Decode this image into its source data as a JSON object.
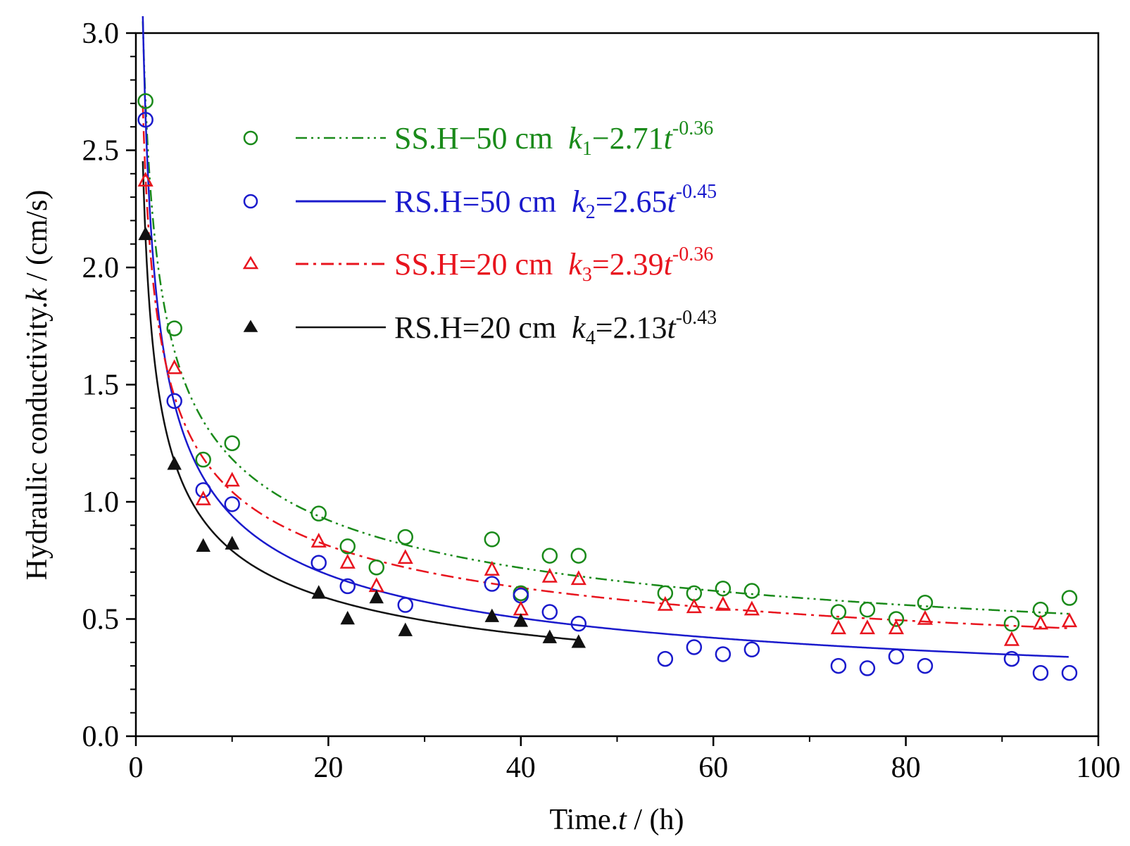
{
  "chart_data": {
    "type": "scatter",
    "title": "",
    "xlabel_text": "Time.",
    "xlabel_var": "t",
    "xlabel_unit": " / (h)",
    "ylabel_text": "Hydraulic conductivity.",
    "ylabel_var": "k",
    "ylabel_unit": " / (cm/s)",
    "xlim": [
      0,
      100
    ],
    "ylim": [
      0,
      3.0
    ],
    "xticks": [
      0,
      20,
      40,
      60,
      80,
      100
    ],
    "xtick_labels": [
      "0",
      "20",
      "40",
      "60",
      "80",
      "100"
    ],
    "yticks": [
      0,
      0.5,
      1.0,
      1.5,
      2.0,
      2.5,
      3.0
    ],
    "ytick_labels": [
      "0.0",
      "0.5",
      "1.0",
      "1.5",
      "2.0",
      "2.5",
      "3.0"
    ],
    "legend_position": "top-right",
    "series": [
      {
        "id": "s1",
        "name": "SS.H−50 cm",
        "eq_sym": "k",
        "eq_sub": "1",
        "eq_coef": "−2.71",
        "eq_var": "t",
        "eq_exp": "-0.36",
        "color": "#1a8a1a",
        "marker": "open-circle",
        "line": "dash-dot-dot",
        "fit": {
          "a": 2.71,
          "b": -0.36
        },
        "x": [
          1,
          4,
          7,
          10,
          19,
          22,
          25,
          28,
          37,
          40,
          43,
          46,
          55,
          58,
          61,
          64,
          73,
          76,
          79,
          82,
          91,
          94,
          97
        ],
        "y": [
          2.71,
          1.74,
          1.18,
          1.25,
          0.95,
          0.81,
          0.72,
          0.85,
          0.84,
          0.61,
          0.77,
          0.77,
          0.61,
          0.61,
          0.63,
          0.62,
          0.53,
          0.54,
          0.5,
          0.57,
          0.48,
          0.54,
          0.59
        ]
      },
      {
        "id": "s2",
        "name": "RS.H=50 cm",
        "eq_sym": "k",
        "eq_sub": "2",
        "eq_coef": "=2.65",
        "eq_var": "t",
        "eq_exp": "-0.45",
        "color": "#1a1acc",
        "marker": "open-circle",
        "line": "solid",
        "fit": {
          "a": 2.65,
          "b": -0.45
        },
        "x": [
          1,
          4,
          7,
          10,
          19,
          22,
          28,
          37,
          40,
          43,
          46,
          55,
          58,
          61,
          64,
          73,
          76,
          79,
          82,
          91,
          94,
          97
        ],
        "y": [
          2.63,
          1.43,
          1.05,
          0.99,
          0.74,
          0.64,
          0.56,
          0.65,
          0.6,
          0.53,
          0.48,
          0.33,
          0.38,
          0.35,
          0.37,
          0.3,
          0.29,
          0.34,
          0.3,
          0.33,
          0.27,
          0.27
        ]
      },
      {
        "id": "s3",
        "name": "SS.H=20 cm",
        "eq_sym": "k",
        "eq_sub": "3",
        "eq_coef": "=2.39",
        "eq_var": "t",
        "eq_exp": "-0.36",
        "color": "#e8141e",
        "marker": "open-triangle",
        "line": "dash-dot",
        "fit": {
          "a": 2.39,
          "b": -0.36
        },
        "x": [
          1,
          4,
          7,
          10,
          19,
          22,
          25,
          28,
          37,
          40,
          43,
          46,
          55,
          58,
          61,
          64,
          73,
          76,
          79,
          82,
          91,
          94,
          97
        ],
        "y": [
          2.37,
          1.57,
          1.01,
          1.09,
          0.83,
          0.74,
          0.64,
          0.76,
          0.71,
          0.54,
          0.68,
          0.67,
          0.56,
          0.55,
          0.56,
          0.54,
          0.46,
          0.46,
          0.46,
          0.5,
          0.41,
          0.48,
          0.49
        ]
      },
      {
        "id": "s4",
        "name": "RS.H=20 cm",
        "eq_sym": "k",
        "eq_sub": "4",
        "eq_coef": "=2.13",
        "eq_var": "t",
        "eq_exp": "-0.43",
        "color": "#111111",
        "marker": "filled-triangle",
        "line": "solid",
        "fit": {
          "a": 2.13,
          "b": -0.43
        },
        "x": [
          1,
          4,
          7,
          10,
          19,
          22,
          25,
          28,
          37,
          40,
          43,
          46
        ],
        "y": [
          2.14,
          1.16,
          0.81,
          0.82,
          0.61,
          0.5,
          0.59,
          0.45,
          0.51,
          0.49,
          0.42,
          0.4
        ]
      }
    ]
  }
}
